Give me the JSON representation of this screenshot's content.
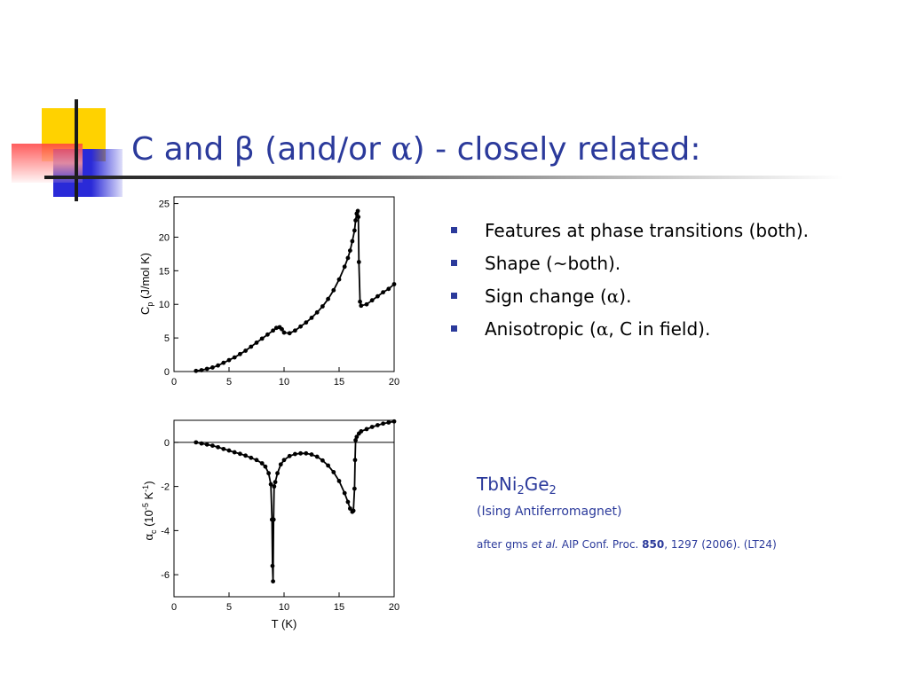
{
  "slide": {
    "title_prefix": "C and β (and/or ",
    "title_symbol": "α",
    "title_suffix": ")  -  closely related:",
    "bullets": [
      {
        "prefix": "Features at phase transitions (both).",
        "symbol": "",
        "suffix": ""
      },
      {
        "prefix": "Shape (~both).",
        "symbol": "",
        "suffix": ""
      },
      {
        "prefix": "Sign change (",
        "symbol": "α",
        "suffix": ")."
      },
      {
        "prefix": "Anisotropic (",
        "symbol": "α",
        "suffix": ", C in field)."
      }
    ],
    "compound": {
      "p1": "TbNi",
      "s1": "2",
      "p2": "Ge",
      "s2": "2"
    },
    "subtitle": "(Ising Antiferromagnet)",
    "citation": {
      "pre": "after gms ",
      "etal": "et al.",
      "journal": " AIP Conf. Proc. ",
      "volume": "850",
      "post": ", 1297 (2006). (LT24)"
    },
    "colors": {
      "accent": "#2b3a9b",
      "deco_yellow": "#ffd200",
      "deco_blue": "#2a2ad8",
      "deco_red": "#ff4040"
    }
  },
  "chart_data": [
    {
      "type": "scatter",
      "xlim": [
        0,
        20
      ],
      "ylim": [
        0,
        26
      ],
      "xticks": [
        0,
        5,
        10,
        15,
        20
      ],
      "yticks": [
        0,
        5,
        10,
        15,
        20,
        25
      ],
      "ylabel_main": "C",
      "ylabel_sub": "p",
      "ylabel_rest": " (J/mol K)",
      "xlabel": "",
      "series": [
        {
          "x": [
            2,
            2.5,
            3,
            3.5,
            4,
            4.5,
            5,
            5.5,
            6,
            6.5,
            7,
            7.5,
            8,
            8.5,
            9,
            9.3,
            9.6,
            9.8,
            10,
            10.5,
            11,
            11.5,
            12,
            12.5,
            13,
            13.5,
            14,
            14.5,
            15,
            15.5,
            15.8,
            16,
            16.2,
            16.4,
            16.5,
            16.6,
            16.7,
            16.75,
            16.8,
            16.9,
            17,
            17.5,
            18,
            18.5,
            19,
            19.5,
            20
          ],
          "y": [
            0.1,
            0.2,
            0.4,
            0.6,
            0.9,
            1.3,
            1.7,
            2.1,
            2.6,
            3.1,
            3.7,
            4.3,
            4.9,
            5.5,
            6.1,
            6.5,
            6.6,
            6.3,
            5.8,
            5.7,
            6.1,
            6.7,
            7.3,
            8.0,
            8.8,
            9.7,
            10.8,
            12.1,
            13.7,
            15.6,
            16.9,
            18.0,
            19.4,
            21.0,
            22.5,
            23.5,
            23.9,
            23.0,
            16.3,
            10.4,
            9.8,
            10.0,
            10.6,
            11.2,
            11.8,
            12.3,
            13.0
          ]
        }
      ]
    },
    {
      "type": "scatter",
      "xlim": [
        0,
        20
      ],
      "ylim": [
        -7,
        1
      ],
      "xticks": [
        0,
        5,
        10,
        15,
        20
      ],
      "yticks": [
        0,
        -2,
        -4,
        -6
      ],
      "ylabel_main": "α",
      "ylabel_sub": "c",
      "ylabel_rest": " (10",
      "ylabel_sup1": "-5",
      "ylabel_mid": " K",
      "ylabel_sup2": "-1",
      "ylabel_end": ")",
      "xlabel": "T (K)",
      "zero_line": true,
      "series": [
        {
          "x": [
            2,
            2.5,
            3,
            3.5,
            4,
            4.5,
            5,
            5.5,
            6,
            6.5,
            7,
            7.5,
            8,
            8.3,
            8.6,
            8.8,
            8.9,
            8.95,
            9,
            9.05,
            9.1,
            9.2,
            9.4,
            9.7,
            10,
            10.5,
            11,
            11.5,
            12,
            12.5,
            13,
            13.5,
            14,
            14.5,
            15,
            15.5,
            15.8,
            16,
            16.2,
            16.3,
            16.4,
            16.45,
            16.5,
            16.6,
            16.8,
            17,
            17.5,
            18,
            18.5,
            19,
            19.5,
            20
          ],
          "y": [
            0,
            -0.05,
            -0.1,
            -0.15,
            -0.22,
            -0.3,
            -0.37,
            -0.45,
            -0.52,
            -0.6,
            -0.7,
            -0.8,
            -0.95,
            -1.1,
            -1.4,
            -1.9,
            -3.5,
            -5.6,
            -6.3,
            -3.5,
            -2.0,
            -1.8,
            -1.4,
            -1.0,
            -0.8,
            -0.62,
            -0.53,
            -0.5,
            -0.5,
            -0.55,
            -0.65,
            -0.82,
            -1.05,
            -1.35,
            -1.75,
            -2.3,
            -2.7,
            -3.0,
            -3.15,
            -3.1,
            -2.1,
            -0.8,
            0.1,
            0.25,
            0.4,
            0.5,
            0.6,
            0.7,
            0.78,
            0.85,
            0.9,
            0.95
          ]
        }
      ]
    }
  ]
}
